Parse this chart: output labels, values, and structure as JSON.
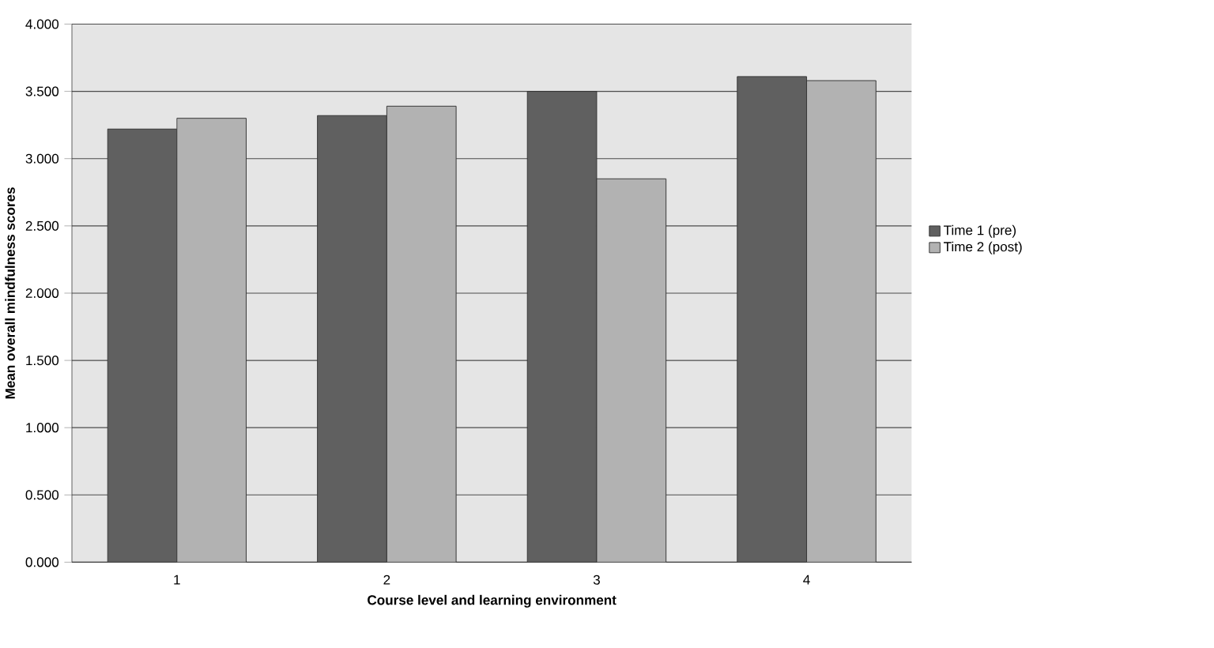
{
  "chart_data": {
    "type": "bar",
    "xlabel": "Course level and learning environment",
    "ylabel": "Mean overall mindfulness scores",
    "categories": [
      "1",
      "2",
      "3",
      "4"
    ],
    "series": [
      {
        "name": "Time 1 (pre)",
        "color": "#606060",
        "values": [
          3.22,
          3.32,
          3.5,
          3.61
        ]
      },
      {
        "name": "Time 2 (post)",
        "color": "#b2b2b2",
        "values": [
          3.3,
          3.39,
          2.85,
          3.58
        ]
      }
    ],
    "ylim": [
      0,
      4
    ],
    "yticks": [
      {
        "value": 0,
        "label": "0.000"
      },
      {
        "value": 0.5,
        "label": "0.500"
      },
      {
        "value": 1,
        "label": "1.000"
      },
      {
        "value": 1.5,
        "label": "1.500"
      },
      {
        "value": 2,
        "label": "2.000"
      },
      {
        "value": 2.5,
        "label": "2.500"
      },
      {
        "value": 3,
        "label": "3.000"
      },
      {
        "value": 3.5,
        "label": "3.500"
      },
      {
        "value": 4,
        "label": "4.000"
      }
    ],
    "grid": "y",
    "legend": "right"
  }
}
